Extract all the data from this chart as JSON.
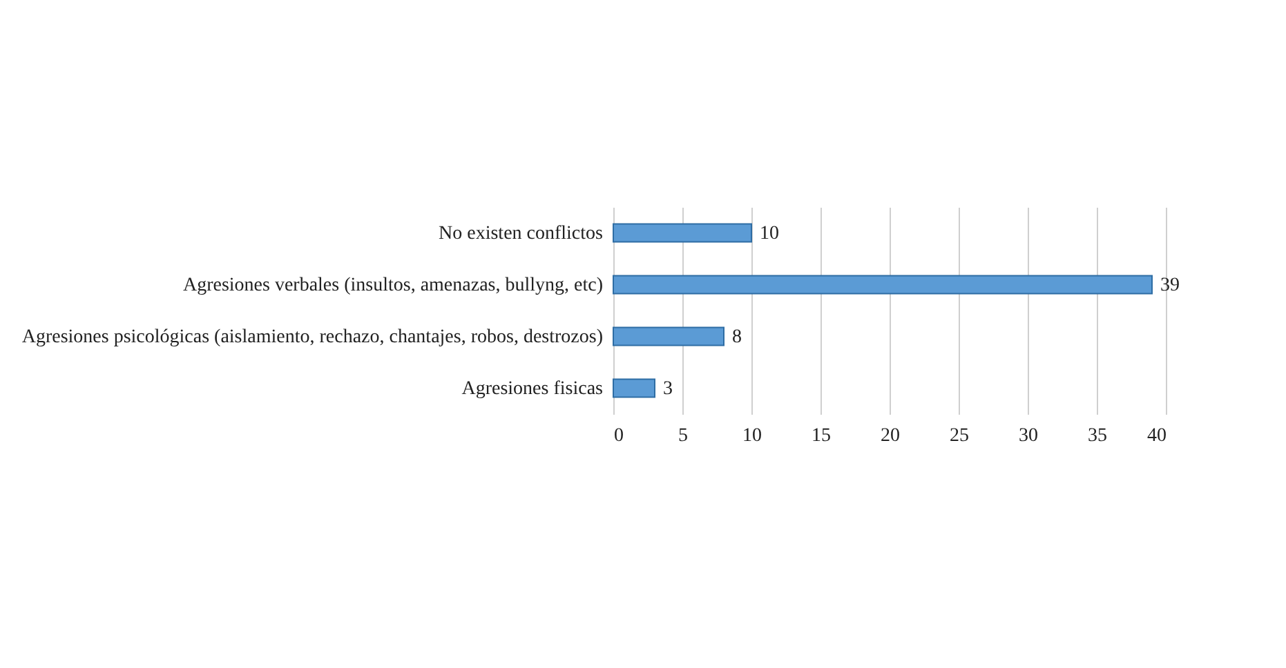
{
  "chart_data": {
    "type": "bar",
    "orientation": "horizontal",
    "categories": [
      "No existen conflictos",
      "Agresiones verbales (insultos, amenazas, bullyng, etc)",
      "Agresiones psicológicas (aislamiento, rechazo, chantajes, robos, destrozos)",
      "Agresiones fisicas"
    ],
    "values": [
      10,
      39,
      8,
      3
    ],
    "color": "#5b9bd5",
    "xlim": [
      0,
      40
    ],
    "xticks": [
      0,
      5,
      10,
      15,
      20,
      25,
      30,
      35,
      40
    ],
    "grid": "x",
    "data_labels": true
  }
}
